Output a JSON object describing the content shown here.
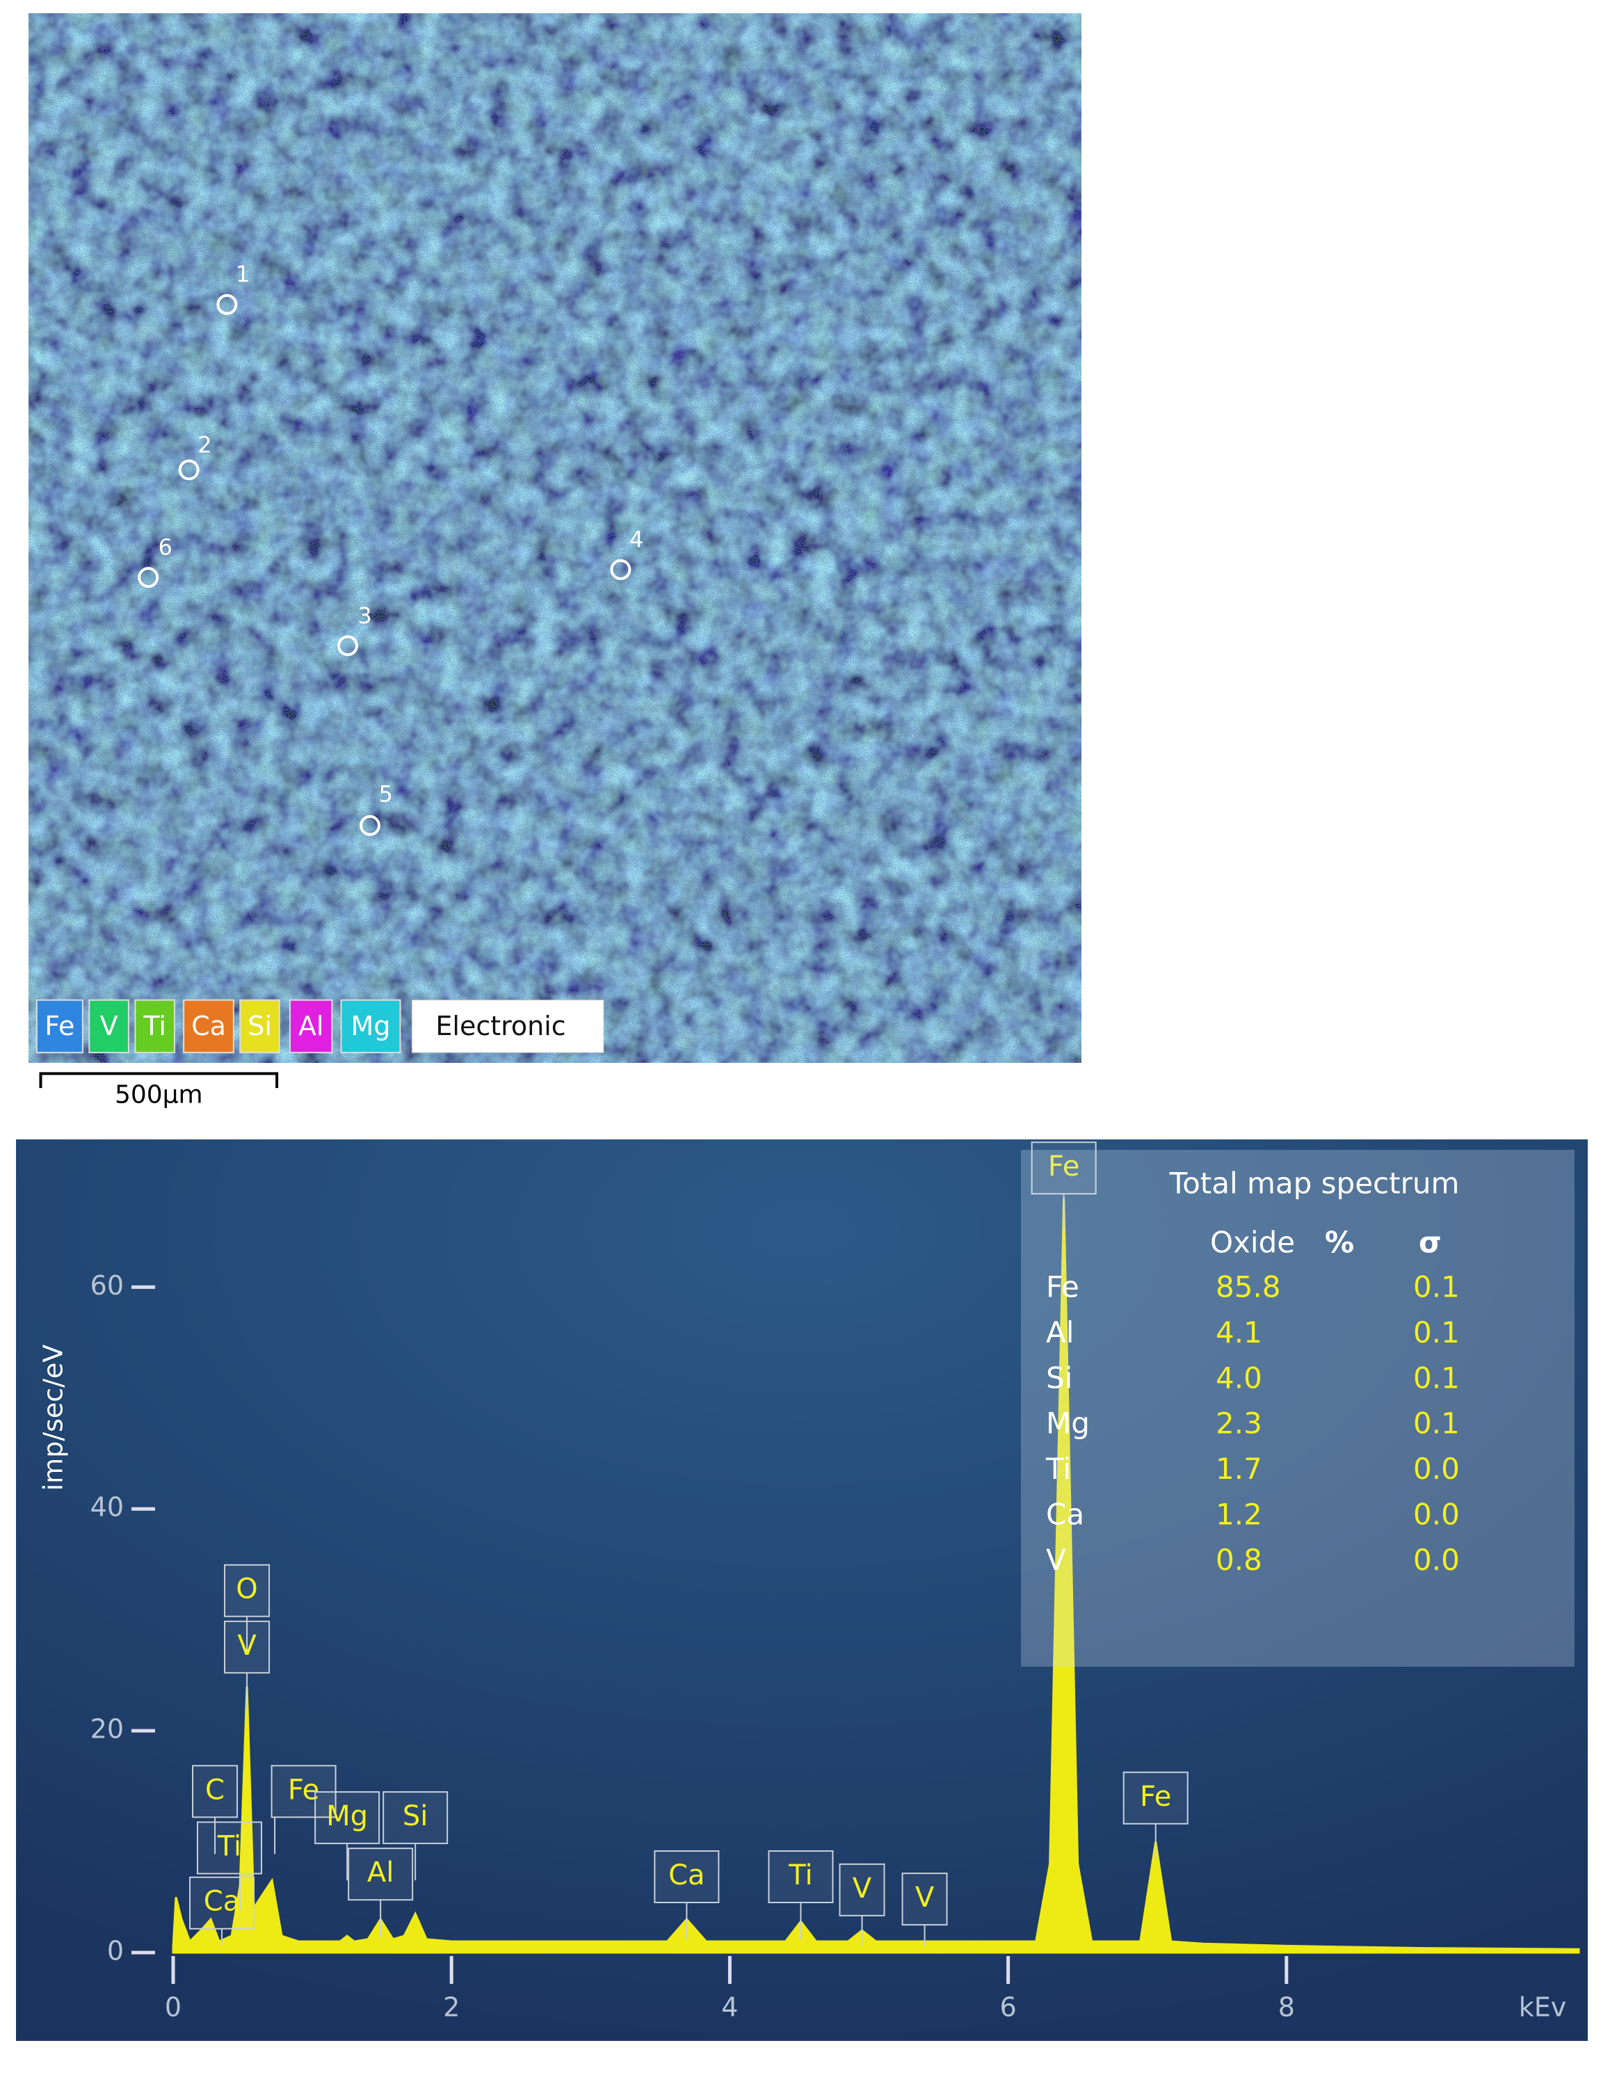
{
  "map": {
    "legend": [
      {
        "label": "Fe",
        "color": "#2f86e0"
      },
      {
        "label": "V",
        "color": "#22cc66"
      },
      {
        "label": "Ti",
        "color": "#66cc22"
      },
      {
        "label": "Ca",
        "color": "#e87722"
      },
      {
        "label": "Si",
        "color": "#e6e020"
      },
      {
        "label": "Al",
        "color": "#e020e0"
      },
      {
        "label": "Mg",
        "color": "#20c8d8"
      }
    ],
    "button": "Electronic",
    "points": [
      "1",
      "2",
      "3",
      "4",
      "5",
      "6"
    ],
    "scale_bar": "500µm"
  },
  "chart_data": {
    "type": "area",
    "y_label": "imp/sec/eV",
    "x_label": "kEv",
    "color": "#eeea14",
    "x": [
      0,
      0.02,
      0.06,
      0.12,
      0.2,
      0.27,
      0.33,
      0.42,
      0.48,
      0.53,
      0.58,
      0.63,
      0.71,
      0.78,
      0.9,
      1.1,
      1.2,
      1.25,
      1.3,
      1.4,
      1.49,
      1.58,
      1.66,
      1.74,
      1.82,
      2.0,
      3.0,
      3.55,
      3.69,
      3.83,
      4.0,
      4.4,
      4.51,
      4.62,
      4.85,
      4.95,
      5.05,
      5.5,
      6.2,
      6.3,
      6.4,
      6.5,
      6.6,
      6.95,
      7.06,
      7.17,
      7.4,
      8.0,
      9.0,
      10.1
    ],
    "values": [
      0.5,
      5,
      3,
      1,
      2,
      3,
      1,
      1.5,
      6,
      24,
      4,
      5,
      6.5,
      1.5,
      1,
      1,
      1,
      1.5,
      1,
      1.2,
      3,
      1.2,
      1.5,
      3.5,
      1.2,
      1,
      1,
      1,
      3,
      1,
      1,
      1,
      2.8,
      1,
      1,
      2,
      1,
      1,
      1,
      8,
      68,
      8,
      1,
      1,
      10,
      1,
      0.8,
      0.6,
      0.4,
      0.3
    ],
    "xlim": [
      0,
      10.1
    ],
    "ylim": [
      0,
      72
    ],
    "xticks": [
      0,
      2,
      4,
      6,
      8
    ],
    "yticks": [
      0,
      20,
      40,
      60
    ],
    "peak_labels": [
      {
        "label": "O",
        "x": 0.53
      },
      {
        "label": "V",
        "x": 0.53
      },
      {
        "label": "C",
        "x": 0.3
      },
      {
        "label": "Ti",
        "x": 0.48
      },
      {
        "label": "Ca",
        "x": 0.35
      },
      {
        "label": "Fe",
        "x": 0.73
      },
      {
        "label": "Mg",
        "x": 1.25
      },
      {
        "label": "Al",
        "x": 1.49
      },
      {
        "label": "Si",
        "x": 1.74
      },
      {
        "label": "Ca",
        "x": 3.69
      },
      {
        "label": "Ti",
        "x": 4.51
      },
      {
        "label": "V",
        "x": 4.95
      },
      {
        "label": "V",
        "x": 5.4
      },
      {
        "label": "Fe",
        "x": 6.4
      },
      {
        "label": "Fe",
        "x": 7.06
      }
    ],
    "table": {
      "title": "Total map spectrum",
      "columns": [
        "Oxide",
        "%",
        "σ"
      ],
      "rows": [
        [
          "Fe",
          "85.8",
          "0.1"
        ],
        [
          "Al",
          "4.1",
          "0.1"
        ],
        [
          "Si",
          "4.0",
          "0.1"
        ],
        [
          "Mg",
          "2.3",
          "0.1"
        ],
        [
          "Ti",
          "1.7",
          "0.0"
        ],
        [
          "Ca",
          "1.2",
          "0.0"
        ],
        [
          "V",
          "0.8",
          "0.0"
        ]
      ]
    }
  }
}
